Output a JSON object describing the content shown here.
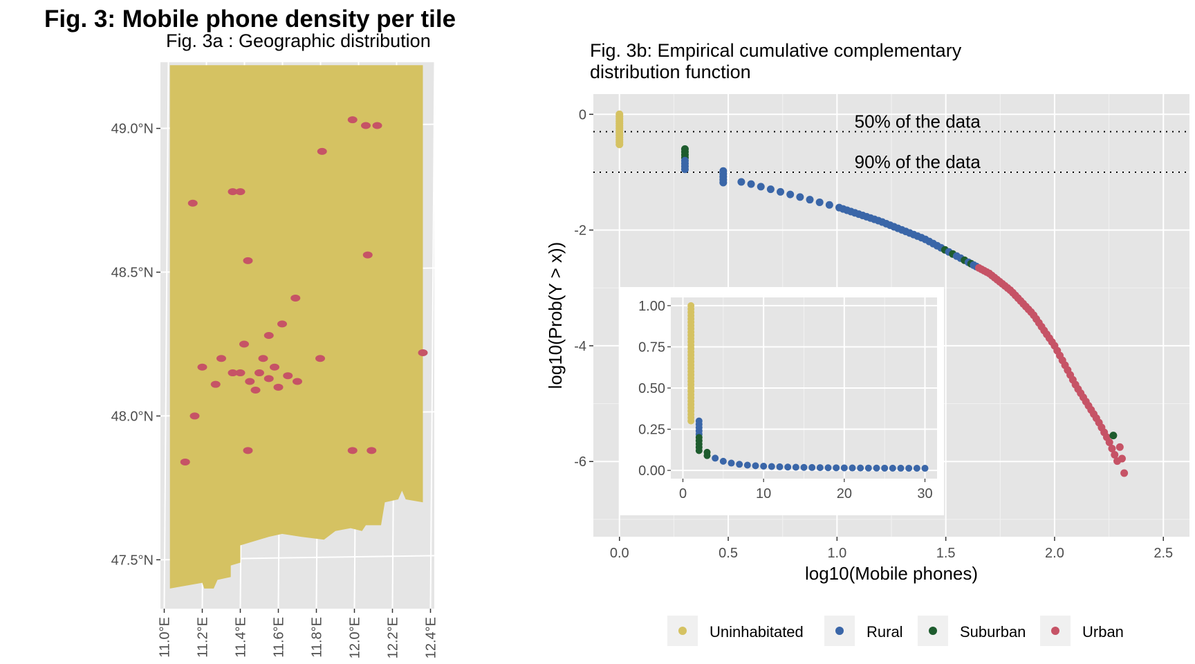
{
  "figure": {
    "title": "Fig. 3: Mobile phone density per tile",
    "subtitle_a": "Fig. 3a : Geographic distribution",
    "subtitle_b_line1": "Fig. 3b: Empirical cumulative complementary",
    "subtitle_b_line2": "distribution function"
  },
  "colors": {
    "panel_bg": "#e5e5e5",
    "grid": "#ffffff",
    "uninhabited": "#d5c262",
    "rural": "#3a66a8",
    "suburban": "#1e5c2e",
    "urban": "#c65366"
  },
  "legend": [
    {
      "label": "Uninhabitated",
      "color": "#d5c262"
    },
    {
      "label": "Rural",
      "color": "#3a66a8"
    },
    {
      "label": "Suburban",
      "color": "#1e5c2e"
    },
    {
      "label": "Urban",
      "color": "#c65366"
    }
  ],
  "chart_data": [
    {
      "type": "scatter",
      "name": "map",
      "x_ticks": [
        "11.0°E",
        "11.2°E",
        "11.4°E",
        "11.6°E",
        "11.8°E",
        "12.0°E",
        "12.2°E",
        "12.4°E"
      ],
      "y_ticks": [
        "47.5°N",
        "48.0°N",
        "48.5°N",
        "49.0°N"
      ],
      "xlim": [
        10.98,
        12.42
      ],
      "ylim": [
        47.33,
        49.23
      ],
      "urban_tiles": [
        [
          11.5,
          48.15
        ],
        [
          11.55,
          48.13
        ],
        [
          11.58,
          48.17
        ],
        [
          11.45,
          48.12
        ],
        [
          11.52,
          48.2
        ],
        [
          11.6,
          48.1
        ],
        [
          11.4,
          48.15
        ],
        [
          11.48,
          48.09
        ],
        [
          11.65,
          48.14
        ],
        [
          11.55,
          48.28
        ],
        [
          11.3,
          48.2
        ],
        [
          11.42,
          48.25
        ],
        [
          11.36,
          48.15
        ],
        [
          11.7,
          48.12
        ],
        [
          11.62,
          48.32
        ],
        [
          11.2,
          48.17
        ],
        [
          11.27,
          48.11
        ],
        [
          11.69,
          48.41
        ],
        [
          11.82,
          48.2
        ],
        [
          11.44,
          48.54
        ],
        [
          12.07,
          48.56
        ],
        [
          11.83,
          48.92
        ],
        [
          11.99,
          49.03
        ],
        [
          12.06,
          49.01
        ],
        [
          12.12,
          49.01
        ],
        [
          11.36,
          48.78
        ],
        [
          11.4,
          48.78
        ],
        [
          11.15,
          48.74
        ],
        [
          11.16,
          48.0
        ],
        [
          11.11,
          47.84
        ],
        [
          11.44,
          47.88
        ],
        [
          11.99,
          47.88
        ],
        [
          12.09,
          47.88
        ],
        [
          12.36,
          48.22
        ]
      ]
    },
    {
      "type": "scatter",
      "name": "ccdf",
      "xlabel": "log10(Mobile phones)",
      "ylabel": "log10(Prob(Y > x))",
      "xlim": [
        -0.12,
        2.62
      ],
      "ylim": [
        -7.3,
        0.35
      ],
      "x_ticks": [
        "0.0",
        "0.5",
        "1.0",
        "1.5",
        "2.0",
        "2.5"
      ],
      "y_ticks": [
        "0",
        "-2",
        "-4",
        "-6"
      ],
      "hlines": [
        {
          "y": -0.3,
          "label": "50% of the data"
        },
        {
          "y": -1.0,
          "label": "90% of the data"
        }
      ]
    },
    {
      "type": "scatter",
      "name": "inset",
      "xlim": [
        -1.5,
        31.5
      ],
      "ylim": [
        -0.05,
        1.05
      ],
      "x_ticks": [
        "0",
        "10",
        "20",
        "30"
      ],
      "y_ticks": [
        "0.00",
        "0.25",
        "0.50",
        "0.75",
        "1.00"
      ]
    }
  ]
}
